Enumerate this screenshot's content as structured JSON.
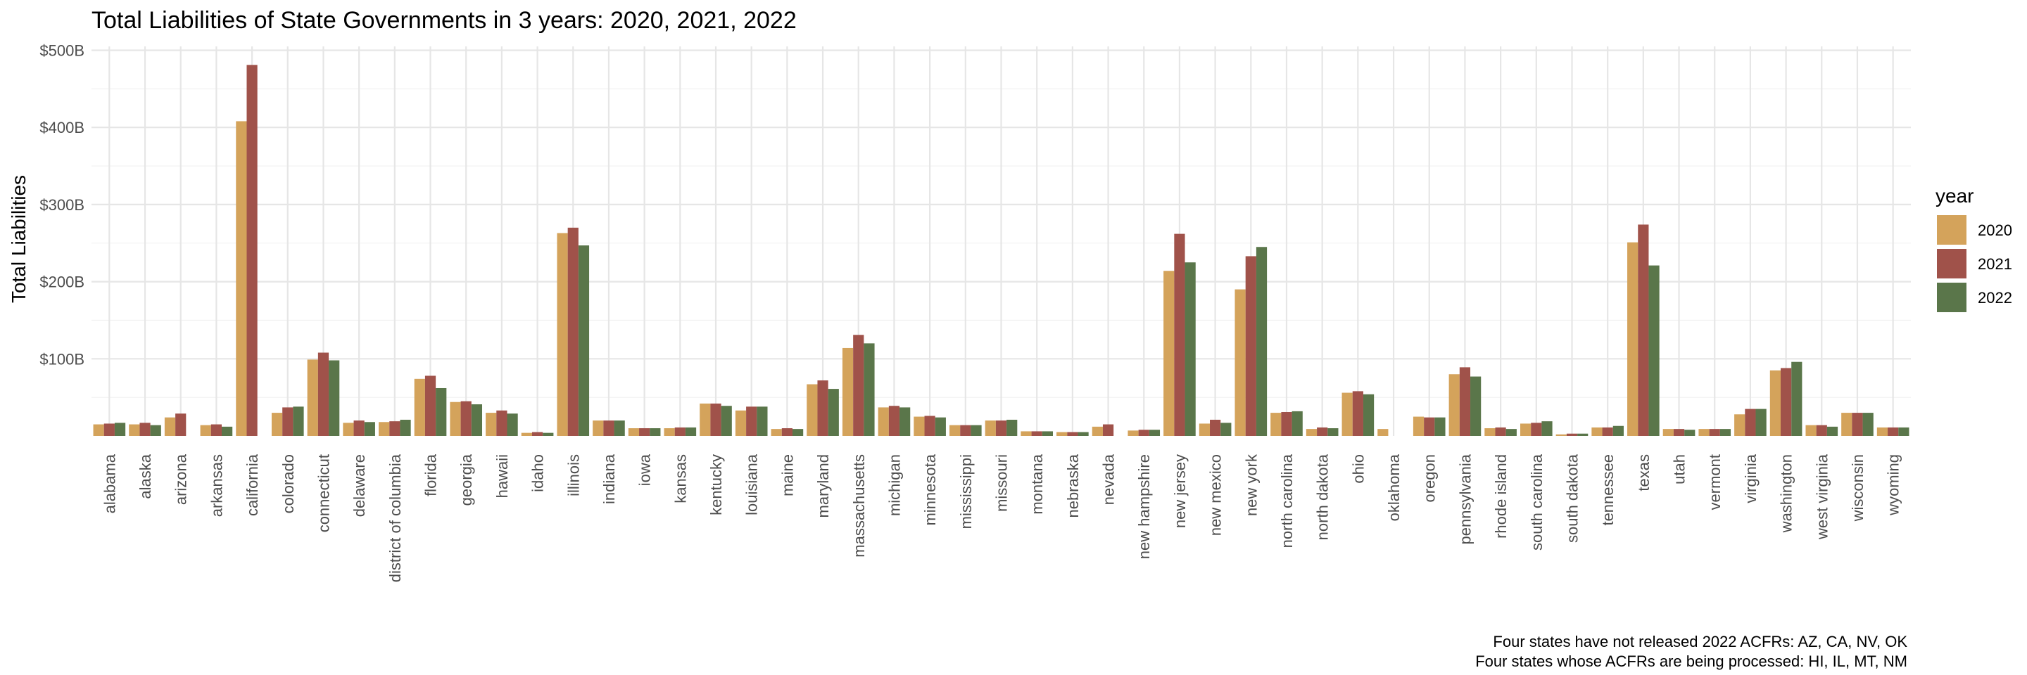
{
  "chart_data": {
    "type": "bar",
    "title": "Total Liabilities of State Governments in 3 years: 2020, 2021, 2022",
    "xlabel": "",
    "ylabel": "Total Liabilities",
    "ylim": [
      0,
      500
    ],
    "y_ticks": [
      100,
      200,
      300,
      400,
      500
    ],
    "y_tick_labels": [
      "$100B",
      "$200B",
      "$300B",
      "$400B",
      "$500B"
    ],
    "grid": true,
    "legend": {
      "title": "year",
      "placement": "right"
    },
    "categories": [
      "alabama",
      "alaska",
      "arizona",
      "arkansas",
      "california",
      "colorado",
      "connecticut",
      "delaware",
      "district of columbia",
      "florida",
      "georgia",
      "hawaii",
      "idaho",
      "illinois",
      "indiana",
      "iowa",
      "kansas",
      "kentucky",
      "louisiana",
      "maine",
      "maryland",
      "massachusetts",
      "michigan",
      "minnesota",
      "mississippi",
      "missouri",
      "montana",
      "nebraska",
      "nevada",
      "new hampshire",
      "new jersey",
      "new mexico",
      "new york",
      "north carolina",
      "north dakota",
      "ohio",
      "oklahoma",
      "oregon",
      "pennsylvania",
      "rhode island",
      "south carolina",
      "south dakota",
      "tennessee",
      "texas",
      "utah",
      "vermont",
      "virginia",
      "washington",
      "west virginia",
      "wisconsin",
      "wyoming"
    ],
    "series": [
      {
        "name": "2020",
        "color": "#D4A35B",
        "values": [
          15,
          15,
          24,
          14,
          408,
          30,
          99,
          17,
          18,
          74,
          44,
          30,
          4,
          263,
          20,
          10,
          10,
          42,
          33,
          9,
          67,
          114,
          37,
          25,
          14,
          20,
          6,
          5,
          12,
          7,
          214,
          16,
          190,
          30,
          9,
          56,
          9,
          25,
          80,
          10,
          16,
          2,
          11,
          251,
          9,
          9,
          28,
          85,
          14,
          30,
          11
        ]
      },
      {
        "name": "2021",
        "color": "#A0524A",
        "values": [
          16,
          17,
          29,
          15,
          481,
          37,
          108,
          20,
          19,
          78,
          45,
          33,
          5,
          270,
          20,
          10,
          11,
          42,
          38,
          10,
          72,
          131,
          39,
          26,
          14,
          20,
          6,
          5,
          15,
          8,
          262,
          21,
          233,
          31,
          11,
          58,
          null,
          24,
          89,
          11,
          17,
          3,
          11,
          274,
          9,
          9,
          35,
          88,
          14,
          30,
          11
        ]
      },
      {
        "name": "2022",
        "color": "#5A764A",
        "values": [
          17,
          14,
          null,
          12,
          null,
          38,
          98,
          18,
          21,
          62,
          41,
          29,
          4,
          247,
          20,
          10,
          11,
          39,
          38,
          9,
          61,
          120,
          37,
          24,
          14,
          21,
          6,
          5,
          null,
          8,
          225,
          17,
          245,
          32,
          10,
          54,
          null,
          24,
          77,
          9,
          19,
          3,
          13,
          221,
          8,
          9,
          35,
          96,
          12,
          30,
          11
        ]
      }
    ],
    "caption": [
      "Four states have not released 2022 ACFRs: AZ, CA, NV, OK",
      "Four states whose ACFRs are being processed: HI, IL, MT, NM"
    ]
  }
}
